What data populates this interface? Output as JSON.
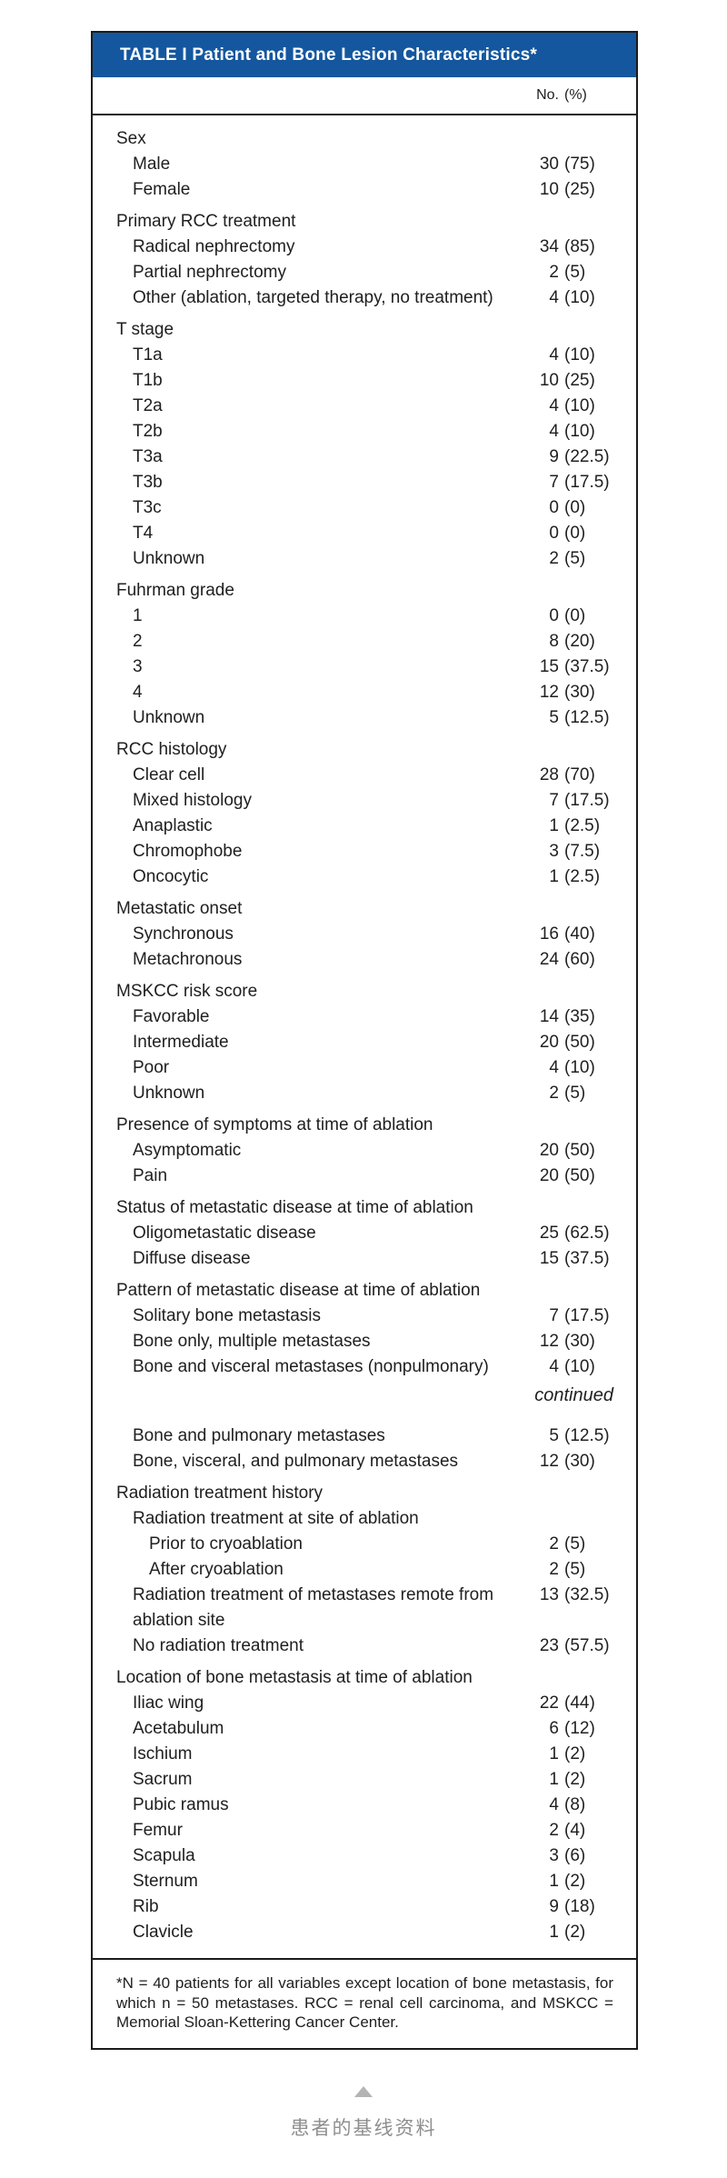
{
  "table": {
    "title": "TABLE I Patient and Bone Lesion Characteristics*",
    "column_header": "No. (%)",
    "continued_label": "continued",
    "footnote": "*N = 40 patients for all variables except location of bone metastasis, for which n = 50 metastases. RCC = renal cell carcinoma, and MSKCC = Memorial Sloan-Kettering Cancer Center.",
    "colors": {
      "header_bg": "#14579f",
      "header_text": "#ffffff",
      "border": "#1b1b1b",
      "body_text": "#202020",
      "caption_gray": "#8f8f8f",
      "marker_gray": "#b4b4b4"
    },
    "rows": [
      {
        "type": "section",
        "label": "Sex",
        "value": "",
        "level": 0
      },
      {
        "type": "item",
        "label": "Male",
        "value": "30 (75)",
        "level": 1
      },
      {
        "type": "item",
        "label": "Female",
        "value": "10 (25)",
        "level": 1
      },
      {
        "type": "section",
        "label": "Primary RCC treatment",
        "value": "",
        "level": 0
      },
      {
        "type": "item",
        "label": "Radical nephrectomy",
        "value": "34 (85)",
        "level": 1
      },
      {
        "type": "item",
        "label": "Partial nephrectomy",
        "value": "2 (5)",
        "level": 1
      },
      {
        "type": "item",
        "label": "Other (ablation, targeted therapy, no treatment)",
        "value": "4 (10)",
        "level": 1
      },
      {
        "type": "section",
        "label": "T stage",
        "value": "",
        "level": 0
      },
      {
        "type": "item",
        "label": "T1a",
        "value": "4 (10)",
        "level": 1
      },
      {
        "type": "item",
        "label": "T1b",
        "value": "10 (25)",
        "level": 1
      },
      {
        "type": "item",
        "label": "T2a",
        "value": "4 (10)",
        "level": 1
      },
      {
        "type": "item",
        "label": "T2b",
        "value": "4 (10)",
        "level": 1
      },
      {
        "type": "item",
        "label": "T3a",
        "value": "9 (22.5)",
        "level": 1
      },
      {
        "type": "item",
        "label": "T3b",
        "value": "7 (17.5)",
        "level": 1
      },
      {
        "type": "item",
        "label": "T3c",
        "value": "0 (0)",
        "level": 1
      },
      {
        "type": "item",
        "label": "T4",
        "value": "0 (0)",
        "level": 1
      },
      {
        "type": "item",
        "label": "Unknown",
        "value": "2 (5)",
        "level": 1
      },
      {
        "type": "section",
        "label": "Fuhrman grade",
        "value": "",
        "level": 0
      },
      {
        "type": "item",
        "label": "1",
        "value": "0 (0)",
        "level": 1
      },
      {
        "type": "item",
        "label": "2",
        "value": "8 (20)",
        "level": 1
      },
      {
        "type": "item",
        "label": "3",
        "value": "15 (37.5)",
        "level": 1
      },
      {
        "type": "item",
        "label": "4",
        "value": "12 (30)",
        "level": 1
      },
      {
        "type": "item",
        "label": "Unknown",
        "value": "5 (12.5)",
        "level": 1
      },
      {
        "type": "section",
        "label": "RCC histology",
        "value": "",
        "level": 0
      },
      {
        "type": "item",
        "label": "Clear cell",
        "value": "28 (70)",
        "level": 1
      },
      {
        "type": "item",
        "label": "Mixed histology",
        "value": "7 (17.5)",
        "level": 1
      },
      {
        "type": "item",
        "label": "Anaplastic",
        "value": "1 (2.5)",
        "level": 1
      },
      {
        "type": "item",
        "label": "Chromophobe",
        "value": "3 (7.5)",
        "level": 1
      },
      {
        "type": "item",
        "label": "Oncocytic",
        "value": "1 (2.5)",
        "level": 1
      },
      {
        "type": "section",
        "label": "Metastatic onset",
        "value": "",
        "level": 0
      },
      {
        "type": "item",
        "label": "Synchronous",
        "value": "16 (40)",
        "level": 1
      },
      {
        "type": "item",
        "label": "Metachronous",
        "value": "24 (60)",
        "level": 1
      },
      {
        "type": "section",
        "label": "MSKCC risk score",
        "value": "",
        "level": 0
      },
      {
        "type": "item",
        "label": "Favorable",
        "value": "14 (35)",
        "level": 1
      },
      {
        "type": "item",
        "label": "Intermediate",
        "value": "20 (50)",
        "level": 1
      },
      {
        "type": "item",
        "label": "Poor",
        "value": "4 (10)",
        "level": 1
      },
      {
        "type": "item",
        "label": "Unknown",
        "value": "2 (5)",
        "level": 1
      },
      {
        "type": "section",
        "label": "Presence of symptoms at time of ablation",
        "value": "",
        "level": 0
      },
      {
        "type": "item",
        "label": "Asymptomatic",
        "value": "20 (50)",
        "level": 1
      },
      {
        "type": "item",
        "label": "Pain",
        "value": "20 (50)",
        "level": 1
      },
      {
        "type": "section",
        "label": "Status of metastatic disease at time of ablation",
        "value": "",
        "level": 0
      },
      {
        "type": "item",
        "label": "Oligometastatic disease",
        "value": "25 (62.5)",
        "level": 1
      },
      {
        "type": "item",
        "label": "Diffuse disease",
        "value": "15 (37.5)",
        "level": 1
      },
      {
        "type": "section",
        "label": "Pattern of metastatic disease at time of ablation",
        "value": "",
        "level": 0
      },
      {
        "type": "item",
        "label": "Solitary bone metastasis",
        "value": "7 (17.5)",
        "level": 1
      },
      {
        "type": "item",
        "label": "Bone only, multiple metastases",
        "value": "12 (30)",
        "level": 1
      },
      {
        "type": "item",
        "label": "Bone and visceral metastases (nonpulmonary)",
        "value": "4 (10)",
        "level": 1
      },
      {
        "type": "continued",
        "label": "continued",
        "value": "",
        "level": 0
      },
      {
        "type": "item",
        "label": "Bone and pulmonary metastases",
        "value": "5 (12.5)",
        "level": 1
      },
      {
        "type": "item",
        "label": "Bone, visceral, and pulmonary metastases",
        "value": "12 (30)",
        "level": 1
      },
      {
        "type": "section",
        "label": "Radiation treatment history",
        "value": "",
        "level": 0
      },
      {
        "type": "item",
        "label": "Radiation treatment at site of ablation",
        "value": "",
        "level": 1
      },
      {
        "type": "item",
        "label": "Prior to cryoablation",
        "value": "2 (5)",
        "level": 2
      },
      {
        "type": "item",
        "label": "After cryoablation",
        "value": "2 (5)",
        "level": 2
      },
      {
        "type": "item",
        "label": "Radiation treatment of metastases remote from ablation site",
        "value": "13 (32.5)",
        "level": 1
      },
      {
        "type": "item",
        "label": "No radiation treatment",
        "value": "23 (57.5)",
        "level": 1
      },
      {
        "type": "section",
        "label": "Location of bone metastasis at time of ablation",
        "value": "",
        "level": 0
      },
      {
        "type": "item",
        "label": "Iliac wing",
        "value": "22 (44)",
        "level": 1
      },
      {
        "type": "item",
        "label": "Acetabulum",
        "value": "6 (12)",
        "level": 1
      },
      {
        "type": "item",
        "label": "Ischium",
        "value": "1 (2)",
        "level": 1
      },
      {
        "type": "item",
        "label": "Sacrum",
        "value": "1 (2)",
        "level": 1
      },
      {
        "type": "item",
        "label": "Pubic ramus",
        "value": "4 (8)",
        "level": 1
      },
      {
        "type": "item",
        "label": "Femur",
        "value": "2 (4)",
        "level": 1
      },
      {
        "type": "item",
        "label": "Scapula",
        "value": "3 (6)",
        "level": 1
      },
      {
        "type": "item",
        "label": "Sternum",
        "value": "1 (2)",
        "level": 1
      },
      {
        "type": "item",
        "label": "Rib",
        "value": "9 (18)",
        "level": 1
      },
      {
        "type": "item",
        "label": "Clavicle",
        "value": "1 (2)",
        "level": 1
      }
    ]
  },
  "caption": {
    "marker": "up-triangle",
    "text": "患者的基线资料"
  }
}
